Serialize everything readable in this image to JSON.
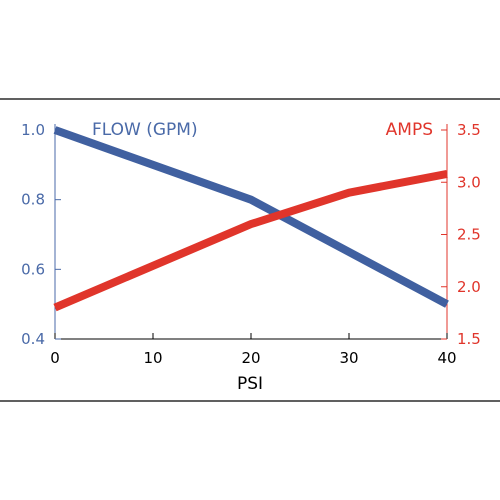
{
  "chart_data": {
    "type": "line",
    "xlabel": "PSI",
    "x_ticks": [
      0,
      10,
      20,
      30,
      40
    ],
    "xlim": [
      0,
      40
    ],
    "left_axis": {
      "label": "FLOW (GPM)",
      "ylim": [
        0.4,
        1.0
      ],
      "ticks": [
        "1.0",
        "0.8",
        "0.6",
        "0.4"
      ],
      "tick_values": [
        1.0,
        0.8,
        0.6,
        0.4
      ],
      "color": "#4a6aa8"
    },
    "right_axis": {
      "label": "AMPS",
      "ylim": [
        1.5,
        3.5
      ],
      "ticks": [
        "3.5",
        "3.0",
        "2.5",
        "2.0",
        "1.5"
      ],
      "tick_values": [
        3.5,
        3.0,
        2.5,
        2.0,
        1.5
      ],
      "color": "#e0352b"
    },
    "series": [
      {
        "name": "FLOW (GPM)",
        "axis": "left",
        "color": "#4060a0",
        "x": [
          0,
          20,
          40
        ],
        "y": [
          1.0,
          0.8,
          0.5
        ]
      },
      {
        "name": "AMPS",
        "axis": "right",
        "color": "#e0352b",
        "x": [
          0,
          10,
          20,
          30,
          40
        ],
        "y": [
          1.8,
          2.2,
          2.6,
          2.9,
          3.08
        ]
      }
    ]
  }
}
